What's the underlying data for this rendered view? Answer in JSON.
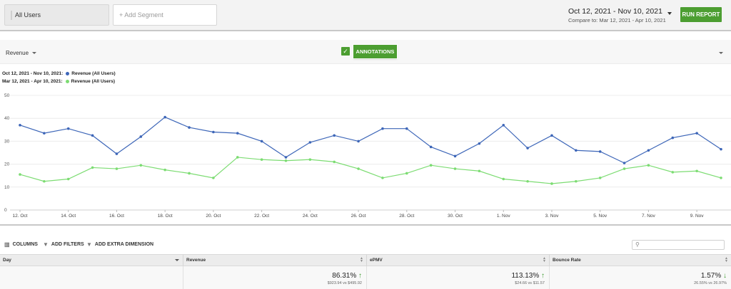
{
  "segments": {
    "active": "All Users",
    "add_placeholder": "+ Add Segment"
  },
  "date_range": {
    "main": "Oct 12, 2021 - Nov 10, 2021",
    "compare": "Compare to: Mar 12, 2021 - Apr 10, 2021"
  },
  "run_report_label": "RUN REPORT",
  "toolbar": {
    "metric": "Revenue",
    "annotations_label": "ANNOTATIONS",
    "annotations_checked": true
  },
  "legend": [
    {
      "range": "Oct 12, 2021 - Nov 10, 2021:",
      "label": "Revenue (All Users)",
      "color": "#3d66b8"
    },
    {
      "range": "Mar 12, 2021 - Apr 10, 2021:",
      "label": "Revenue (All Users)",
      "color": "#7cdc72"
    }
  ],
  "chart_data": {
    "type": "line",
    "x": [
      "12. Oct",
      "13. Oct",
      "14. Oct",
      "15. Oct",
      "16. Oct",
      "17. Oct",
      "18. Oct",
      "19. Oct",
      "20. Oct",
      "21. Oct",
      "22. Oct",
      "23. Oct",
      "24. Oct",
      "25. Oct",
      "26. Oct",
      "27. Oct",
      "28. Oct",
      "29. Oct",
      "30. Oct",
      "31. Oct",
      "1. Nov",
      "2. Nov",
      "3. Nov",
      "4. Nov",
      "5. Nov",
      "6. Nov",
      "7. Nov",
      "8. Nov",
      "9. Nov",
      "10. Nov"
    ],
    "x_tick_labels": [
      "12. Oct",
      "14. Oct",
      "16. Oct",
      "18. Oct",
      "20. Oct",
      "22. Oct",
      "24. Oct",
      "26. Oct",
      "28. Oct",
      "30. Oct",
      "1. Nov",
      "3. Nov",
      "5. Nov",
      "7. Nov",
      "9. Nov"
    ],
    "y_ticks": [
      0,
      10,
      20,
      30,
      40,
      50
    ],
    "ylim": [
      0,
      50
    ],
    "grid": true,
    "series": [
      {
        "name": "Revenue (All Users)",
        "color": "#3d66b8",
        "values": [
          37,
          33.5,
          35.5,
          32.5,
          24.5,
          32,
          40.5,
          36,
          34,
          33.5,
          30,
          23,
          29.5,
          32.5,
          30,
          35.5,
          35.5,
          27.5,
          23.5,
          29,
          37,
          27,
          32.5,
          26,
          25.5,
          20.5,
          26,
          31.5,
          33.5,
          26.5
        ]
      },
      {
        "name": "Revenue (All Users)",
        "color": "#7cdc72",
        "values": [
          15.5,
          12.5,
          13.5,
          18.5,
          18,
          19.5,
          17.5,
          16,
          14,
          23,
          22,
          21.5,
          22,
          21,
          18,
          14,
          16,
          19.5,
          18,
          17,
          13.5,
          12.5,
          11.5,
          12.5,
          14,
          18,
          19.5,
          16.5,
          17,
          14
        ]
      }
    ]
  },
  "table_toolbar": {
    "columns": "COLUMNS",
    "add_filters": "ADD FILTERS",
    "add_dimension": "ADD EXTRA DIMENSION"
  },
  "table": {
    "headers": [
      "Day",
      "Revenue",
      "ePMV",
      "Bounce Rate"
    ],
    "totals": [
      {
        "value": "",
        "compare": ""
      },
      {
        "value": "86.31%",
        "compare": "$923.94 vs $495.92",
        "trend": "up"
      },
      {
        "value": "113.13%",
        "compare": "$24.66 vs $11.57",
        "trend": "up"
      },
      {
        "value": "1.57%",
        "compare": "26.55% vs 26.97%",
        "trend": "down"
      }
    ]
  }
}
